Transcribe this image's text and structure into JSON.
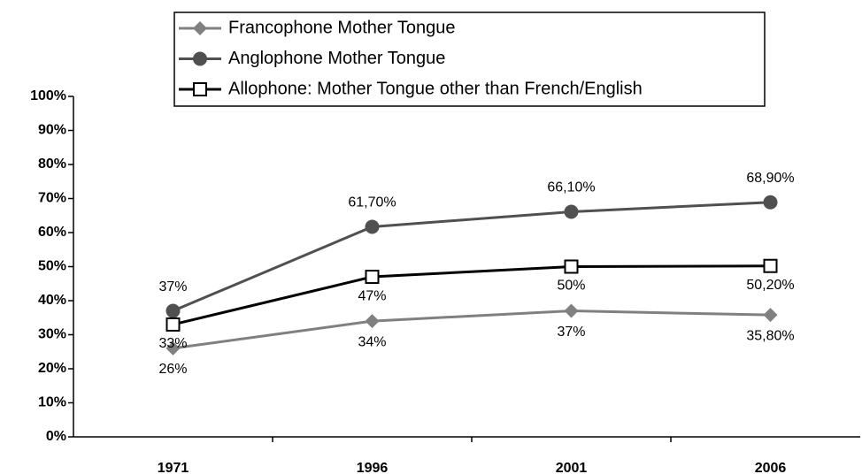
{
  "chart_data": {
    "type": "line",
    "categories": [
      "1971",
      "1996",
      "2001",
      "2006"
    ],
    "series": [
      {
        "name": "Francophone Mother Tongue",
        "color": "#808080",
        "marker": "diamond",
        "values": [
          26,
          34,
          37,
          35.8
        ],
        "value_labels": [
          "26%",
          "34%",
          "37%",
          "35,80%"
        ]
      },
      {
        "name": "Anglophone Mother Tongue",
        "color": "#505050",
        "marker": "circle",
        "values": [
          37,
          61.7,
          66.1,
          68.9
        ],
        "value_labels": [
          "37%",
          "61,70%",
          "66,10%",
          "68,90%"
        ]
      },
      {
        "name": "Allophone: Mother Tongue other than French/English",
        "color": "#000000",
        "marker": "square",
        "values": [
          33,
          47,
          50,
          50.2
        ],
        "value_labels": [
          "33%",
          "47%",
          "50%",
          "50,20%"
        ]
      }
    ],
    "ylim": [
      0,
      100
    ],
    "yticks": [
      {
        "value": 0,
        "label": "0%"
      },
      {
        "value": 10,
        "label": "10%"
      },
      {
        "value": 20,
        "label": "20%"
      },
      {
        "value": 30,
        "label": "30%"
      },
      {
        "value": 40,
        "label": "40%"
      },
      {
        "value": 50,
        "label": "50%"
      },
      {
        "value": 60,
        "label": "60%"
      },
      {
        "value": 70,
        "label": "70%"
      },
      {
        "value": 80,
        "label": "80%"
      },
      {
        "value": 90,
        "label": "90%"
      },
      {
        "value": 100,
        "label": "100%"
      }
    ],
    "legend": "top"
  }
}
